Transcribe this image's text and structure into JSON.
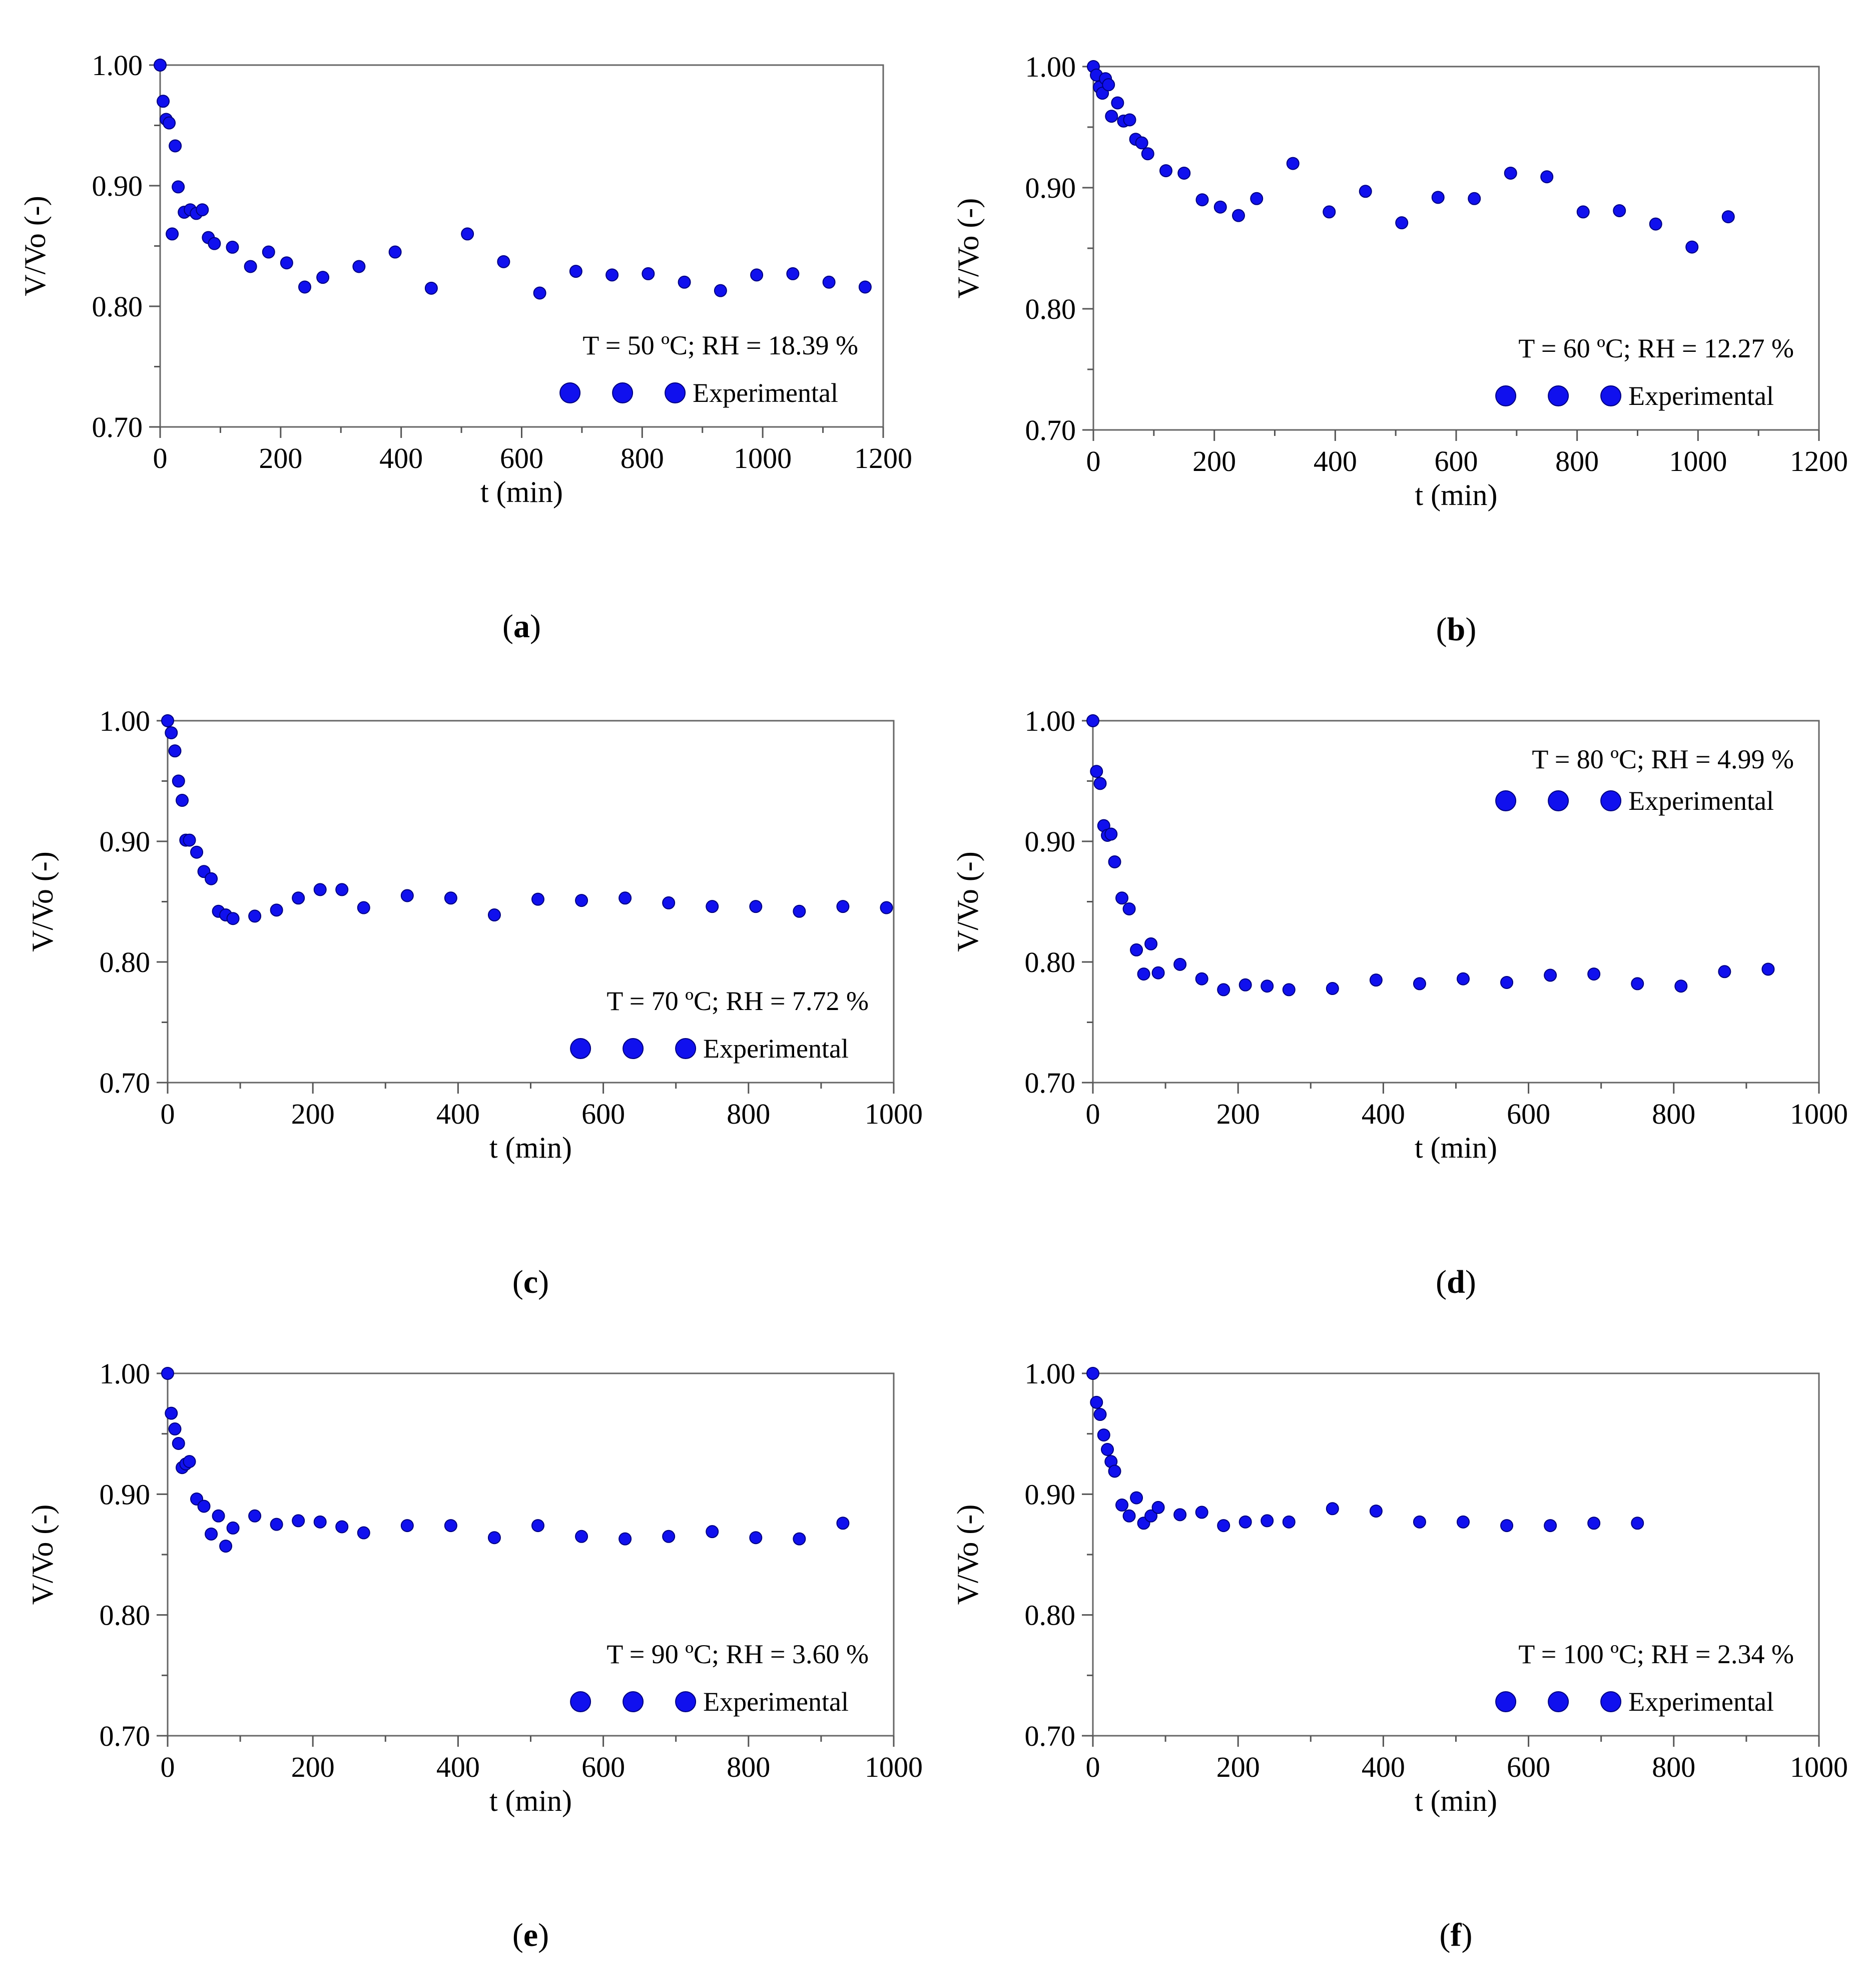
{
  "figure": {
    "panels_count": 6,
    "marker_color": "#1010ee",
    "marker_stroke": "#000080"
  },
  "chart_data": [
    {
      "type": "scatter",
      "panel_label": "a",
      "xlabel": "t (min)",
      "ylabel": "V/Vo (-)",
      "xlim": [
        0,
        1200
      ],
      "ylim": [
        0.7,
        1.0
      ],
      "xticks": [
        0,
        200,
        400,
        600,
        800,
        1000,
        1200
      ],
      "xtick_labels": [
        "0",
        "200",
        "400",
        "600",
        "800",
        "1000",
        "1200"
      ],
      "yticks": [
        0.7,
        0.8,
        0.9,
        1.0
      ],
      "ytick_labels": [
        "0.70",
        "0.80",
        "0.90",
        "1.00"
      ],
      "annotation": "T = 50 ºC; RH = 18.39 %",
      "legend_label": "Experimental",
      "legend_position": "bottom-right",
      "series": [
        {
          "name": "Experimental",
          "x": [
            0,
            5,
            10,
            15,
            20,
            25,
            30,
            40,
            50,
            60,
            70,
            80,
            90,
            120,
            150,
            180,
            210,
            240,
            270,
            330,
            390,
            450,
            510,
            570,
            630,
            690,
            750,
            810,
            870,
            930,
            990,
            1050,
            1110,
            1170
          ],
          "y": [
            1.0,
            0.97,
            0.955,
            0.952,
            0.86,
            0.933,
            0.899,
            0.878,
            0.88,
            0.877,
            0.88,
            0.857,
            0.852,
            0.849,
            0.833,
            0.845,
            0.836,
            0.816,
            0.824,
            0.833,
            0.845,
            0.815,
            0.86,
            0.837,
            0.811,
            0.829,
            0.826,
            0.827,
            0.82,
            0.813,
            0.826,
            0.827,
            0.82,
            0.816
          ]
        }
      ]
    },
    {
      "type": "scatter",
      "panel_label": "b",
      "xlabel": "t (min)",
      "ylabel": "V/Vo (-)",
      "xlim": [
        0,
        1200
      ],
      "ylim": [
        0.7,
        1.0
      ],
      "xticks": [
        0,
        200,
        400,
        600,
        800,
        1000,
        1200
      ],
      "xtick_labels": [
        "0",
        "200",
        "400",
        "600",
        "800",
        "1000",
        "1200"
      ],
      "yticks": [
        0.7,
        0.8,
        0.9,
        1.0
      ],
      "ytick_labels": [
        "0.70",
        "0.80",
        "0.90",
        "1.00"
      ],
      "annotation": "T = 60 ºC; RH = 12.27 %",
      "legend_label": "Experimental",
      "legend_position": "bottom-right",
      "series": [
        {
          "name": "Experimental",
          "x": [
            0,
            5,
            10,
            15,
            20,
            25,
            30,
            40,
            50,
            60,
            70,
            80,
            90,
            120,
            150,
            180,
            210,
            240,
            270,
            330,
            390,
            450,
            510,
            570,
            630,
            690,
            750,
            810,
            870,
            930,
            990,
            1050
          ],
          "y": [
            1.0,
            0.993,
            0.983,
            0.978,
            0.99,
            0.985,
            0.959,
            0.97,
            0.955,
            0.956,
            0.94,
            0.937,
            0.928,
            0.914,
            0.912,
            0.89,
            0.884,
            0.877,
            0.891,
            0.92,
            0.88,
            0.897,
            0.871,
            0.892,
            0.891,
            0.912,
            0.909,
            0.88,
            0.881,
            0.87,
            0.851,
            0.876
          ]
        }
      ]
    },
    {
      "type": "scatter",
      "panel_label": "c",
      "xlabel": "t (min)",
      "ylabel": "V/Vo (-)",
      "xlim": [
        0,
        1000
      ],
      "ylim": [
        0.7,
        1.0
      ],
      "xticks": [
        0,
        200,
        400,
        600,
        800,
        1000
      ],
      "xtick_labels": [
        "0",
        "200",
        "400",
        "600",
        "800",
        "1000"
      ],
      "yticks": [
        0.7,
        0.8,
        0.9,
        1.0
      ],
      "ytick_labels": [
        "0.70",
        "0.80",
        "0.90",
        "1.00"
      ],
      "annotation": "T = 70 ºC; RH = 7.72 %",
      "legend_label": "Experimental",
      "legend_position": "bottom-right",
      "series": [
        {
          "name": "Experimental",
          "x": [
            0,
            5,
            10,
            15,
            20,
            25,
            30,
            40,
            50,
            60,
            70,
            80,
            90,
            120,
            150,
            180,
            210,
            240,
            270,
            330,
            390,
            450,
            510,
            570,
            630,
            690,
            750,
            810,
            870,
            930,
            990
          ],
          "y": [
            1.0,
            0.99,
            0.975,
            0.95,
            0.934,
            0.901,
            0.901,
            0.891,
            0.875,
            0.869,
            0.842,
            0.839,
            0.836,
            0.838,
            0.843,
            0.853,
            0.86,
            0.86,
            0.845,
            0.855,
            0.853,
            0.839,
            0.852,
            0.851,
            0.853,
            0.849,
            0.846,
            0.846,
            0.842,
            0.846,
            0.845
          ]
        }
      ]
    },
    {
      "type": "scatter",
      "panel_label": "d",
      "xlabel": "t (min)",
      "ylabel": "V/Vo (-)",
      "xlim": [
        0,
        1000
      ],
      "ylim": [
        0.7,
        1.0
      ],
      "xticks": [
        0,
        200,
        400,
        600,
        800,
        1000
      ],
      "xtick_labels": [
        "0",
        "200",
        "400",
        "600",
        "800",
        "1000"
      ],
      "yticks": [
        0.7,
        0.8,
        0.9,
        1.0
      ],
      "ytick_labels": [
        "0.70",
        "0.80",
        "0.90",
        "1.00"
      ],
      "annotation": "T = 80 ºC; RH = 4.99 %",
      "legend_label": "Experimental",
      "legend_position": "top-right",
      "series": [
        {
          "name": "Experimental",
          "x": [
            0,
            5,
            10,
            15,
            20,
            25,
            30,
            40,
            50,
            60,
            70,
            80,
            90,
            120,
            150,
            180,
            210,
            240,
            270,
            330,
            390,
            450,
            510,
            570,
            630,
            690,
            750,
            810,
            870,
            930
          ],
          "y": [
            1.0,
            0.958,
            0.948,
            0.913,
            0.905,
            0.906,
            0.883,
            0.853,
            0.844,
            0.81,
            0.79,
            0.815,
            0.791,
            0.798,
            0.786,
            0.777,
            0.781,
            0.78,
            0.777,
            0.778,
            0.785,
            0.782,
            0.786,
            0.783,
            0.789,
            0.79,
            0.782,
            0.78,
            0.792,
            0.794
          ]
        }
      ]
    },
    {
      "type": "scatter",
      "panel_label": "e",
      "xlabel": "t (min)",
      "ylabel": "V/Vo (-)",
      "xlim": [
        0,
        1000
      ],
      "ylim": [
        0.7,
        1.0
      ],
      "xticks": [
        0,
        200,
        400,
        600,
        800,
        1000
      ],
      "xtick_labels": [
        "0",
        "200",
        "400",
        "600",
        "800",
        "1000"
      ],
      "yticks": [
        0.7,
        0.8,
        0.9,
        1.0
      ],
      "ytick_labels": [
        "0.70",
        "0.80",
        "0.90",
        "1.00"
      ],
      "annotation": "T = 90 ºC; RH = 3.60 %",
      "legend_label": "Experimental",
      "legend_position": "bottom-right",
      "series": [
        {
          "name": "Experimental",
          "x": [
            0,
            5,
            10,
            15,
            20,
            25,
            30,
            40,
            50,
            60,
            70,
            80,
            90,
            120,
            150,
            180,
            210,
            240,
            270,
            330,
            390,
            450,
            510,
            570,
            630,
            690,
            750,
            810,
            870,
            930
          ],
          "y": [
            1.0,
            0.967,
            0.954,
            0.942,
            0.922,
            0.925,
            0.927,
            0.896,
            0.89,
            0.867,
            0.882,
            0.857,
            0.872,
            0.882,
            0.875,
            0.878,
            0.877,
            0.873,
            0.868,
            0.874,
            0.874,
            0.864,
            0.874,
            0.865,
            0.863,
            0.865,
            0.869,
            0.864,
            0.863,
            0.876
          ]
        }
      ]
    },
    {
      "type": "scatter",
      "panel_label": "f",
      "xlabel": "t (min)",
      "ylabel": "V/Vo (-)",
      "xlim": [
        0,
        1000
      ],
      "ylim": [
        0.7,
        1.0
      ],
      "xticks": [
        0,
        200,
        400,
        600,
        800,
        1000
      ],
      "xtick_labels": [
        "0",
        "200",
        "400",
        "600",
        "800",
        "1000"
      ],
      "yticks": [
        0.7,
        0.8,
        0.9,
        1.0
      ],
      "ytick_labels": [
        "0.70",
        "0.80",
        "0.90",
        "1.00"
      ],
      "annotation": "T = 100 ºC; RH = 2.34 %",
      "legend_label": "Experimental",
      "legend_position": "bottom-right",
      "series": [
        {
          "name": "Experimental",
          "x": [
            0,
            5,
            10,
            15,
            20,
            25,
            30,
            40,
            50,
            60,
            70,
            80,
            90,
            120,
            150,
            180,
            210,
            240,
            270,
            330,
            390,
            450,
            510,
            570,
            630,
            690,
            750
          ],
          "y": [
            1.0,
            0.976,
            0.966,
            0.949,
            0.937,
            0.927,
            0.919,
            0.891,
            0.882,
            0.897,
            0.876,
            0.882,
            0.889,
            0.883,
            0.885,
            0.874,
            0.877,
            0.878,
            0.877,
            0.888,
            0.886,
            0.877,
            0.877,
            0.874,
            0.874,
            0.876,
            0.876
          ]
        }
      ]
    }
  ]
}
